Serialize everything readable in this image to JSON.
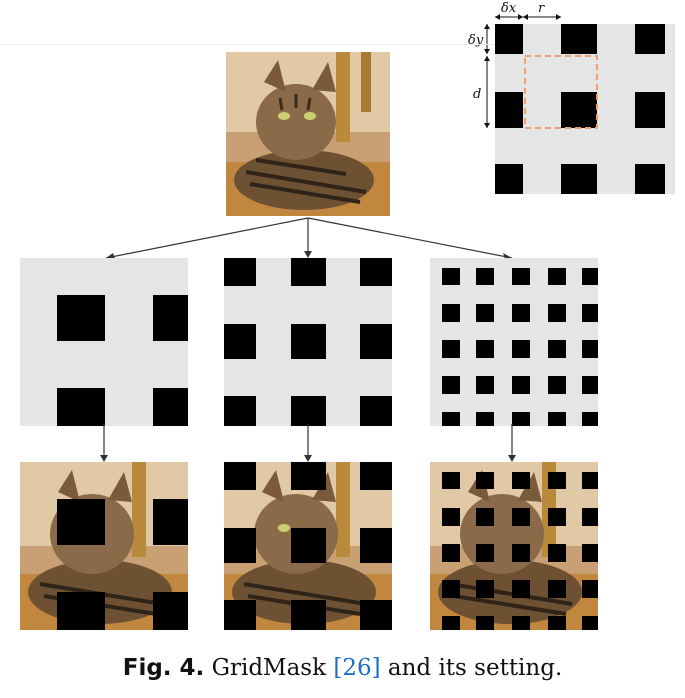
{
  "figure": {
    "setting_labels": {
      "delta_x": "δx",
      "delta_y": "δy",
      "r": "r",
      "d": "d"
    },
    "masks": [
      {
        "variant": "large-squares",
        "squares_per_row": 2
      },
      {
        "variant": "medium-squares",
        "squares_per_row": 3
      },
      {
        "variant": "small-squares",
        "squares_per_row": 5
      }
    ],
    "colors": {
      "mask_background": "#e5e5e5",
      "mask_square": "#000000",
      "highlight_dashed": "#f0a070",
      "arrow": "#333333"
    },
    "subject": "cat-photo"
  },
  "caption": {
    "label": "Fig. 4.",
    "text_before": " GridMask ",
    "ref": "[26]",
    "text_after": " and its setting."
  }
}
